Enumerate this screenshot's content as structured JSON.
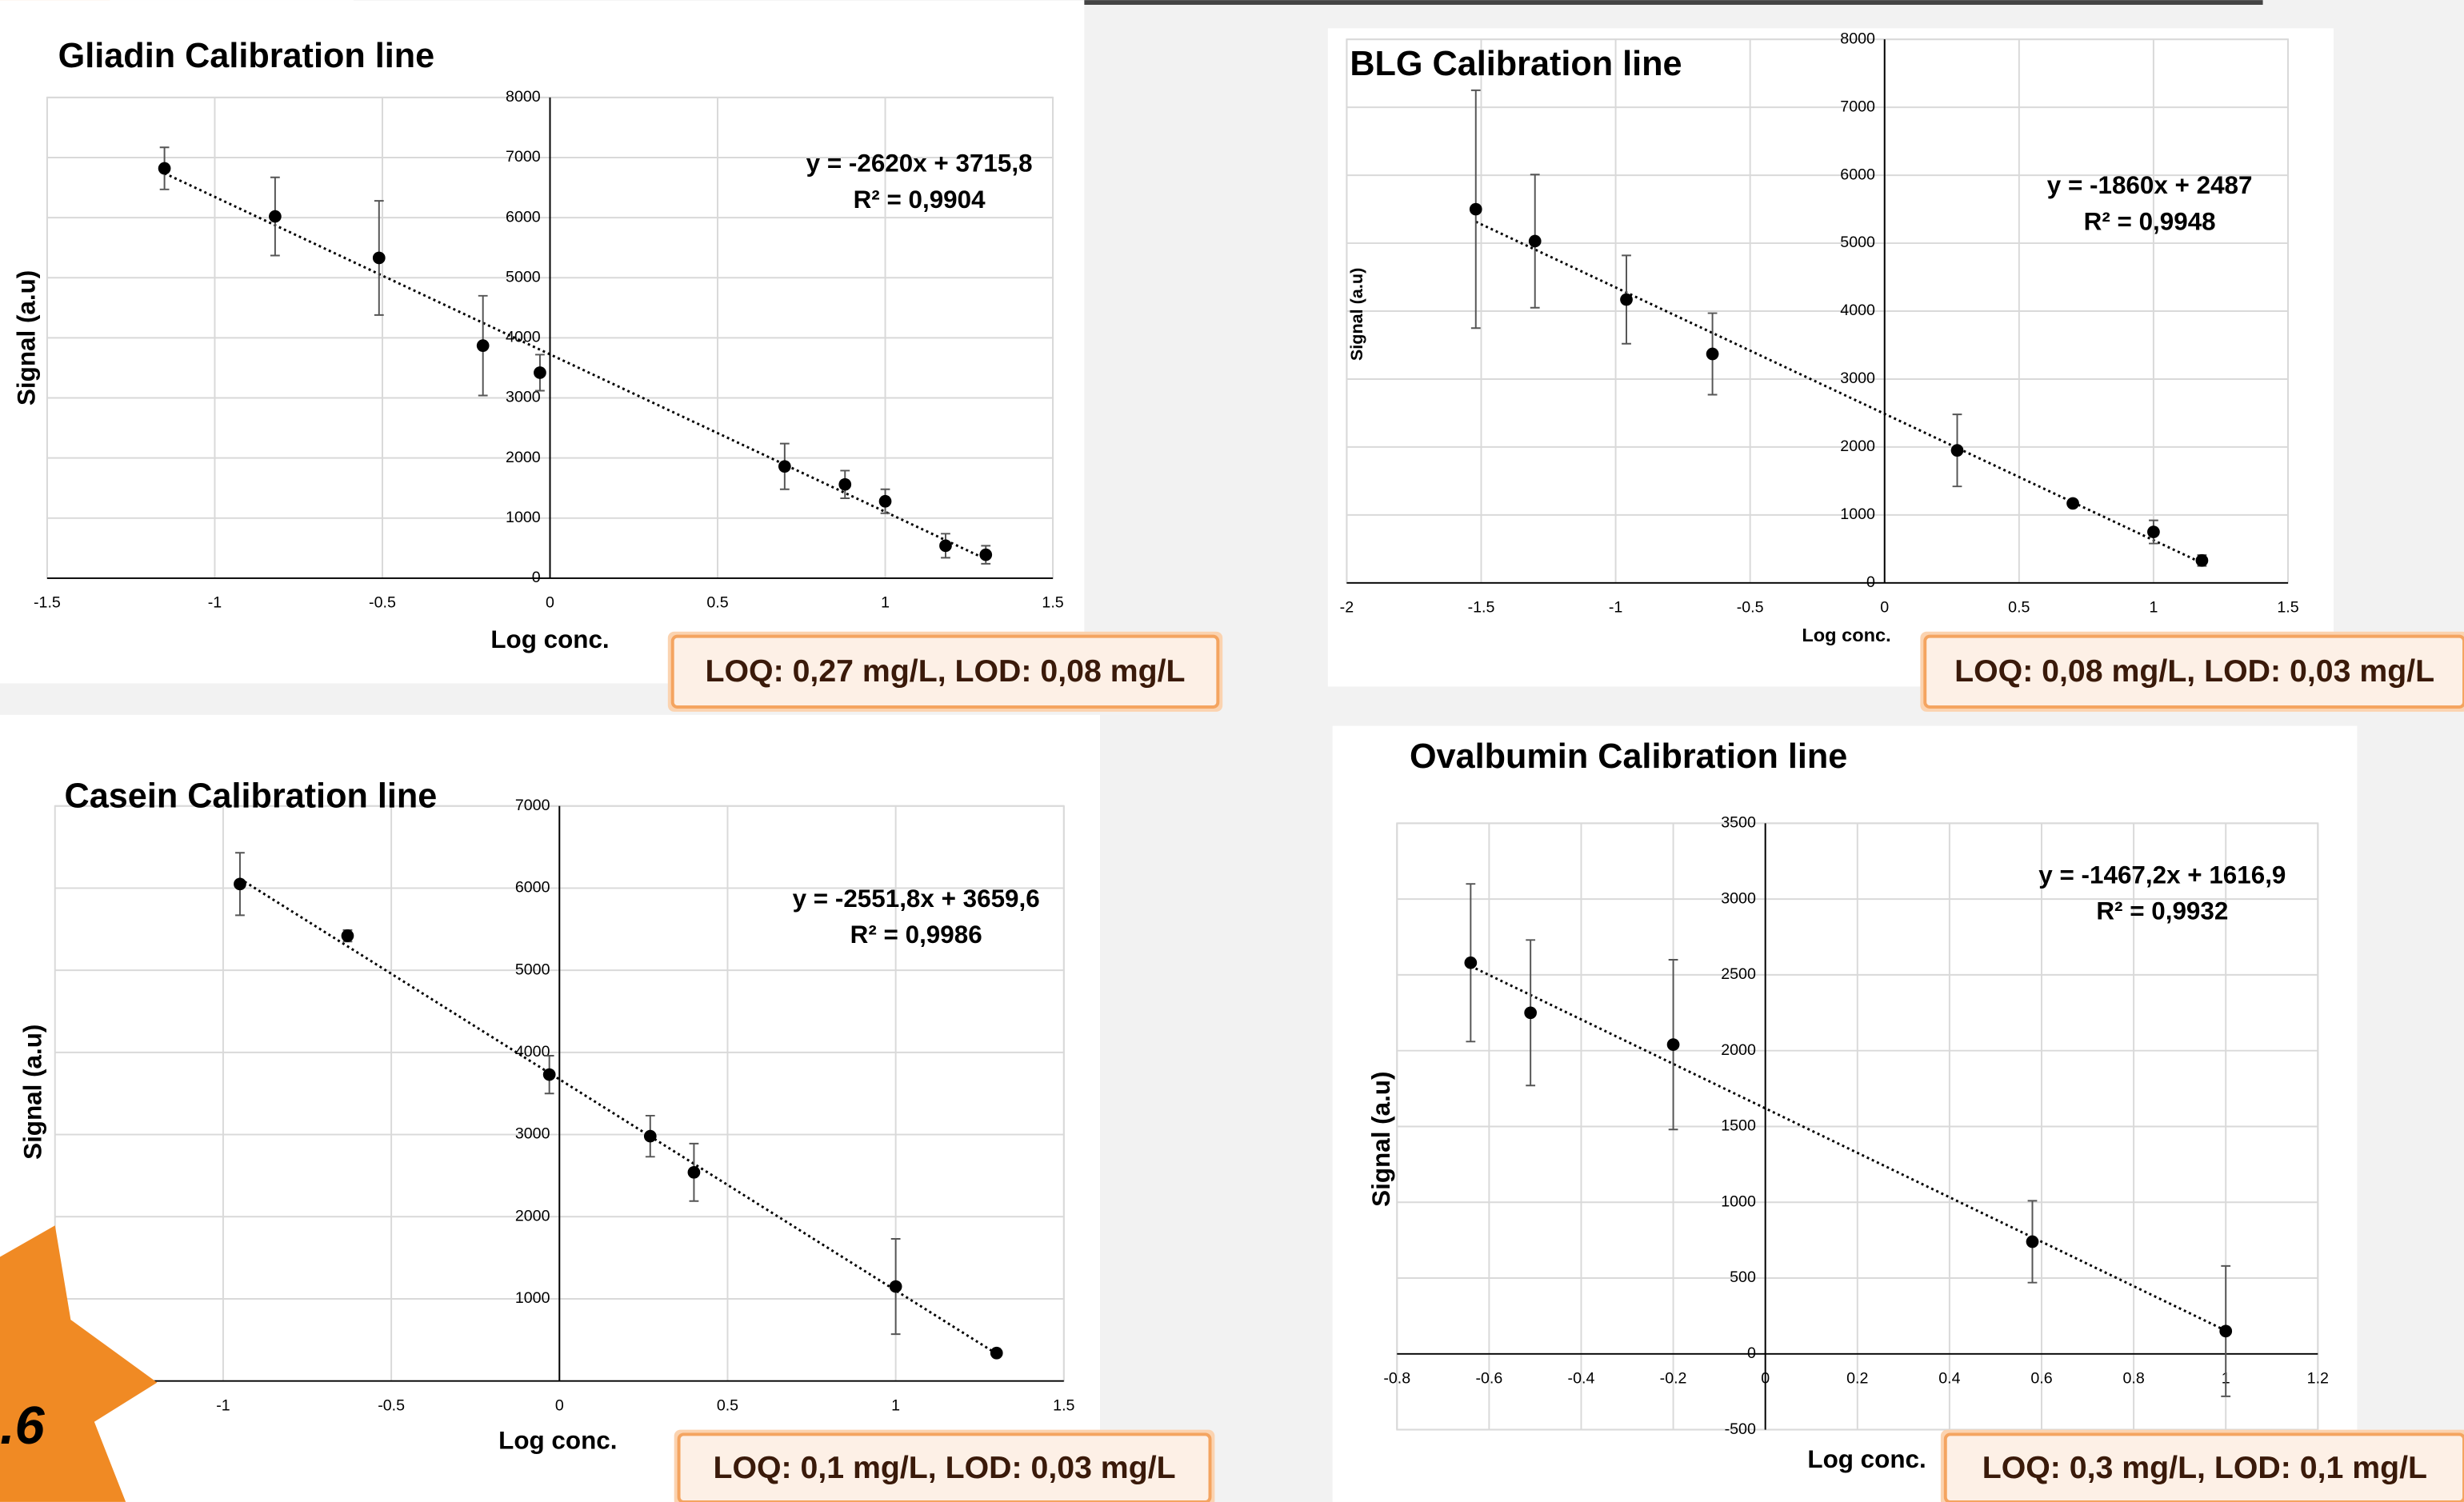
{
  "badge": ".6",
  "chart_data": [
    {
      "type": "scatter",
      "title": "Gliadin Calibration line",
      "xlabel": "Log conc.",
      "ylabel": "Signal (a.u)",
      "x": [
        -1.15,
        -0.82,
        -0.51,
        -0.2,
        -0.03,
        0.7,
        0.88,
        1.0,
        1.18,
        1.3
      ],
      "values": [
        6820,
        6020,
        5330,
        3870,
        3420,
        1860,
        1560,
        1280,
        540,
        390
      ],
      "errors": [
        350,
        650,
        950,
        830,
        300,
        380,
        230,
        200,
        200,
        150
      ],
      "color": "#000000",
      "xlim": [
        -1.5,
        1.5
      ],
      "xticks": [
        -1.5,
        -1,
        -0.5,
        0,
        0.5,
        1,
        1.5
      ],
      "ylim": [
        0,
        8000
      ],
      "yticks": [
        0,
        1000,
        2000,
        3000,
        4000,
        5000,
        6000,
        7000,
        8000
      ],
      "grid": true,
      "equation": "y = -2620x + 3715,8",
      "r_squared": "R² = 0,9904",
      "note": "LOQ: 0,27 mg/L, LOD: 0,08 mg/L"
    },
    {
      "type": "scatter",
      "title": "BLG Calibration line",
      "xlabel": "Log conc.",
      "ylabel": "Signal (a.u)",
      "x": [
        -1.52,
        -1.3,
        -0.96,
        -0.64,
        0.27,
        0.7,
        1.0,
        1.18
      ],
      "values": [
        5500,
        5030,
        4170,
        3370,
        1950,
        1170,
        750,
        330
      ],
      "errors": [
        1750,
        980,
        650,
        600,
        530,
        50,
        170,
        80
      ],
      "color": "#000000",
      "xlim": [
        -2,
        1.5
      ],
      "xticks": [
        -2,
        -1.5,
        -1,
        -0.5,
        0,
        0.5,
        1,
        1.5
      ],
      "ylim": [
        0,
        8000
      ],
      "yticks": [
        0,
        1000,
        2000,
        3000,
        4000,
        5000,
        6000,
        7000,
        8000
      ],
      "grid": true,
      "equation": "y = -1860x + 2487",
      "r_squared": "R² = 0,9948",
      "note": "LOQ: 0,08 mg/L, LOD: 0,03 mg/L"
    },
    {
      "type": "scatter",
      "title": "Casein Calibration line",
      "xlabel": "Log conc.",
      "ylabel": "Signal (a.u)",
      "x": [
        -0.95,
        -0.63,
        -0.03,
        0.27,
        0.4,
        1.0,
        1.3
      ],
      "values": [
        6050,
        5420,
        3730,
        2980,
        2540,
        1150,
        340
      ],
      "errors": [
        380,
        70,
        230,
        250,
        350,
        580,
        30
      ],
      "color": "#000000",
      "xlim": [
        -1.5,
        1.5
      ],
      "xticks": [
        -1,
        -0.5,
        0,
        0.5,
        1,
        1.5
      ],
      "ylim": [
        0,
        7000
      ],
      "yticks": [
        1000,
        2000,
        3000,
        4000,
        5000,
        6000,
        7000
      ],
      "grid": true,
      "equation": "y = -2551,8x + 3659,6",
      "r_squared": "R² = 0,9986",
      "note": "LOQ: 0,1 mg/L, LOD: 0,03 mg/L"
    },
    {
      "type": "scatter",
      "title": "Ovalbumin Calibration line",
      "xlabel": "Log conc.",
      "ylabel": "Signal (a.u)",
      "x": [
        -0.64,
        -0.51,
        -0.2,
        0.58,
        1.0
      ],
      "values": [
        2580,
        2250,
        2040,
        740,
        150
      ],
      "errors": [
        520,
        480,
        560,
        270,
        430
      ],
      "color": "#000000",
      "xlim": [
        -0.8,
        1.2
      ],
      "xticks": [
        -0.8,
        -0.6,
        -0.4,
        -0.2,
        0,
        0.2,
        0.4,
        0.6,
        0.8,
        1,
        1.2
      ],
      "ylim": [
        -500,
        3500
      ],
      "yticks": [
        -500,
        0,
        500,
        1000,
        1500,
        2000,
        2500,
        3000,
        3500
      ],
      "grid": true,
      "equation": "y = -1467,2x + 1616,9",
      "r_squared": "R² = 0,9932",
      "note": "LOQ: 0,3 mg/L, LOD: 0,1 mg/L"
    }
  ]
}
